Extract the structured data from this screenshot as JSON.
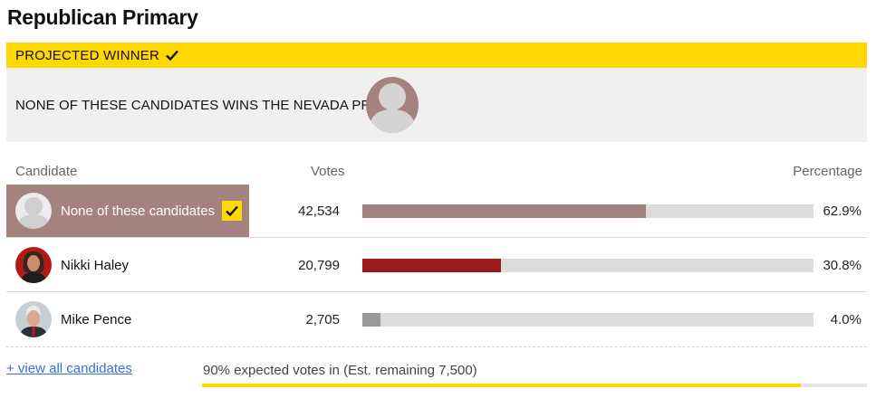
{
  "title": "Republican Primary",
  "winner": {
    "banner_label": "PROJECTED WINNER",
    "text": "NONE OF THESE CANDIDATES WINS THE NEVADA PRIMARY"
  },
  "table": {
    "headers": {
      "candidate": "Candidate",
      "votes": "Votes",
      "percentage": "Percentage"
    },
    "rows": [
      {
        "name": "None of these candidates",
        "votes": "42,534",
        "percentage": "62.9%",
        "share": 0.629,
        "color": "#a4837f",
        "winner": true
      },
      {
        "name": "Nikki Haley",
        "votes": "20,799",
        "percentage": "30.8%",
        "share": 0.308,
        "color": "#9b1c1c",
        "winner": false
      },
      {
        "name": "Mike Pence",
        "votes": "2,705",
        "percentage": "4.0%",
        "share": 0.04,
        "color": "#999999",
        "winner": false
      }
    ]
  },
  "footer": {
    "view_all": "+ view all candidates",
    "expected": "90% expected votes in (Est. remaining 7,500)",
    "expected_share": 0.9
  },
  "colors": {
    "accent": "#ffd800",
    "winner_fill": "#a4837f",
    "haley": "#9b1c1c",
    "pence": "#999999"
  }
}
